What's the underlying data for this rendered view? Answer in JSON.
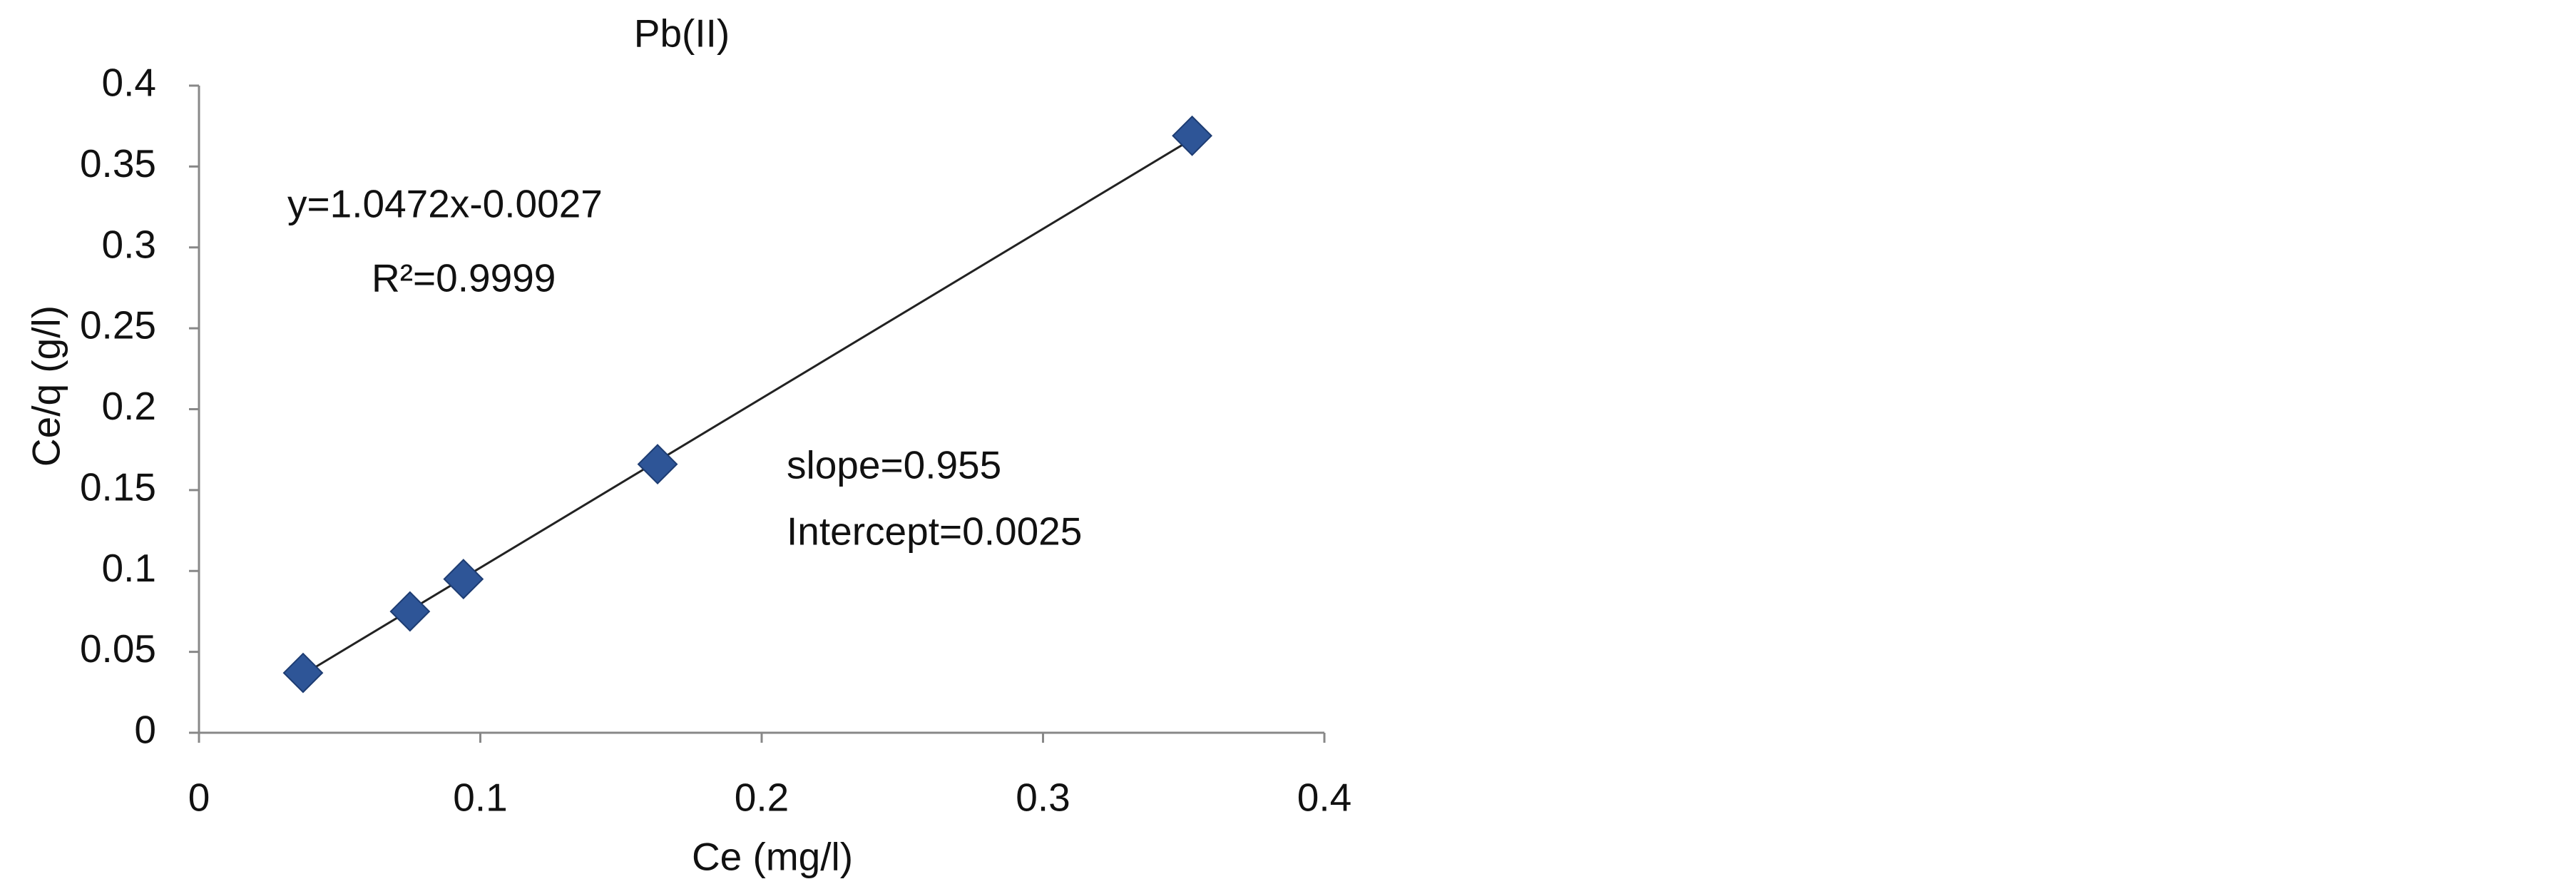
{
  "chart_data": {
    "type": "scatter",
    "title": "Pb(II)",
    "x_label": "Ce (mg/l)",
    "y_label": "Ce/q (g/l)",
    "x": [
      0.037,
      0.075,
      0.094,
      0.163,
      0.353
    ],
    "values": [
      0.037,
      0.075,
      0.095,
      0.166,
      0.369
    ],
    "color": "#2e5597",
    "trendline": {
      "x": [
        0.037,
        0.353
      ],
      "values": [
        0.036,
        0.367
      ],
      "color": "#222222"
    },
    "annotations": [
      "y=1.0472x-0.0027",
      "R²=0.9999",
      "slope=0.955",
      "Intercept=0.0025"
    ],
    "xlim": [
      0,
      0.4
    ],
    "ylim": [
      0,
      0.4
    ],
    "xticks": [
      0,
      0.1,
      0.2,
      0.3,
      0.4
    ],
    "yticks": [
      0,
      0.05,
      0.1,
      0.15,
      0.2,
      0.25,
      0.3,
      0.35,
      0.4
    ],
    "grid": false
  }
}
